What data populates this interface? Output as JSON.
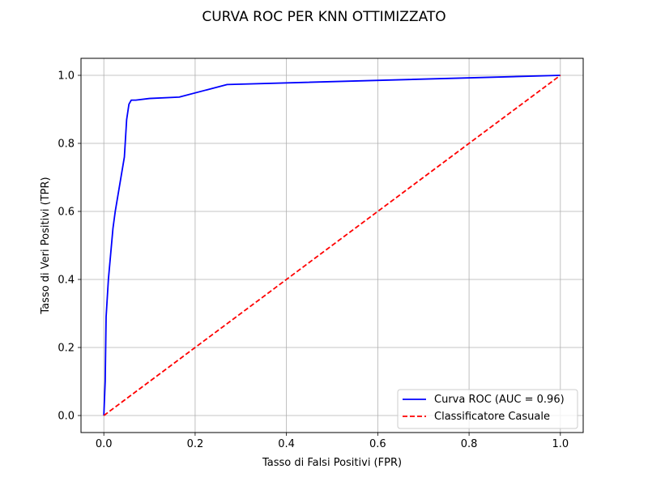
{
  "chart_data": {
    "type": "line",
    "title": "CURVA ROC PER KNN OTTIMIZZATO",
    "xlabel": "Tasso di Falsi Positivi (FPR)",
    "ylabel": "Tasso di Veri Positivi (TPR)",
    "xlim": [
      -0.05,
      1.05
    ],
    "ylim": [
      -0.05,
      1.05
    ],
    "xticks": [
      0.0,
      0.2,
      0.4,
      0.6,
      0.8,
      1.0
    ],
    "yticks": [
      0.0,
      0.2,
      0.4,
      0.6,
      0.8,
      1.0
    ],
    "xtick_labels": [
      "0.0",
      "0.2",
      "0.4",
      "0.6",
      "0.8",
      "1.0"
    ],
    "ytick_labels": [
      "0.0",
      "0.2",
      "0.4",
      "0.6",
      "0.8",
      "1.0"
    ],
    "grid": true,
    "legend_position": "lower-right",
    "series": [
      {
        "name": "Curva ROC (AUC = 0.96)",
        "color": "#0000ff",
        "style": "solid",
        "x": [
          0.0,
          0.003,
          0.005,
          0.01,
          0.02,
          0.025,
          0.045,
          0.05,
          0.055,
          0.06,
          0.07,
          0.1,
          0.165,
          0.27,
          1.0
        ],
        "y": [
          0.0,
          0.1,
          0.29,
          0.4,
          0.55,
          0.6,
          0.76,
          0.87,
          0.915,
          0.927,
          0.927,
          0.932,
          0.936,
          0.973,
          1.0
        ]
      },
      {
        "name": "Classificatore Casuale",
        "color": "#ff0000",
        "style": "dashed",
        "x": [
          0.0,
          1.0
        ],
        "y": [
          0.0,
          1.0
        ]
      }
    ]
  }
}
